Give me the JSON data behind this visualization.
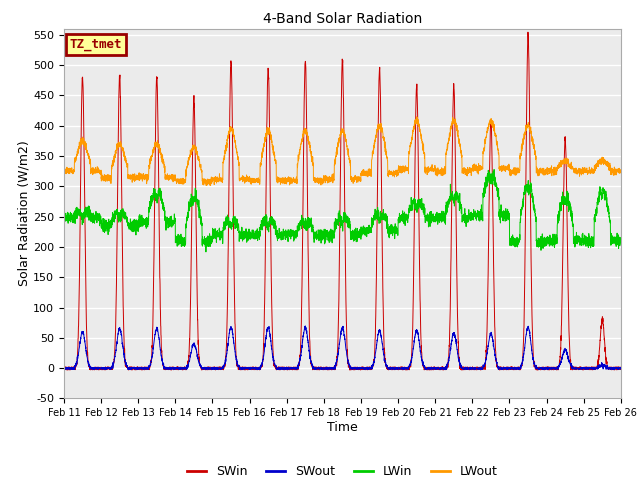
{
  "title": "4-Band Solar Radiation",
  "xlabel": "Time",
  "ylabel": "Solar Radiation (W/m2)",
  "ylim": [
    -50,
    560
  ],
  "yticks": [
    -50,
    0,
    50,
    100,
    150,
    200,
    250,
    300,
    350,
    400,
    450,
    500,
    550
  ],
  "x_labels": [
    "Feb 11",
    "Feb 12",
    "Feb 13",
    "Feb 14",
    "Feb 15",
    "Feb 16",
    "Feb 17",
    "Feb 18",
    "Feb 19",
    "Feb 20",
    "Feb 21",
    "Feb 22",
    "Feb 23",
    "Feb 24",
    "Feb 25",
    "Feb 26"
  ],
  "colors": {
    "SWin": "#cc0000",
    "SWout": "#0000cc",
    "LWin": "#00cc00",
    "LWout": "#ff9900"
  },
  "legend_labels": [
    "SWin",
    "SWout",
    "LWin",
    "LWout"
  ],
  "tag_label": "TZ_tmet",
  "tag_bg": "#ffff99",
  "tag_border": "#990000",
  "plot_bg": "#ebebeb",
  "fig_bg": "#ffffff",
  "n_days": 15,
  "points_per_day": 288,
  "swin_peaks": [
    480,
    480,
    480,
    440,
    507,
    495,
    507,
    510,
    493,
    465,
    465,
    408,
    548,
    380,
    80
  ],
  "swout_peaks": [
    60,
    65,
    65,
    40,
    67,
    67,
    67,
    67,
    62,
    62,
    58,
    57,
    67,
    30,
    5
  ],
  "lwin_night": [
    248,
    235,
    242,
    210,
    220,
    220,
    220,
    220,
    228,
    248,
    248,
    252,
    208,
    210,
    210
  ],
  "lwin_day": [
    260,
    260,
    295,
    290,
    248,
    248,
    248,
    255,
    260,
    280,
    292,
    330,
    310,
    290,
    300
  ],
  "lwout_night": [
    325,
    315,
    315,
    308,
    312,
    310,
    310,
    312,
    322,
    328,
    325,
    330,
    325,
    325,
    325
  ],
  "lwout_day": [
    375,
    370,
    370,
    365,
    395,
    392,
    392,
    392,
    400,
    408,
    408,
    408,
    400,
    342,
    342
  ]
}
